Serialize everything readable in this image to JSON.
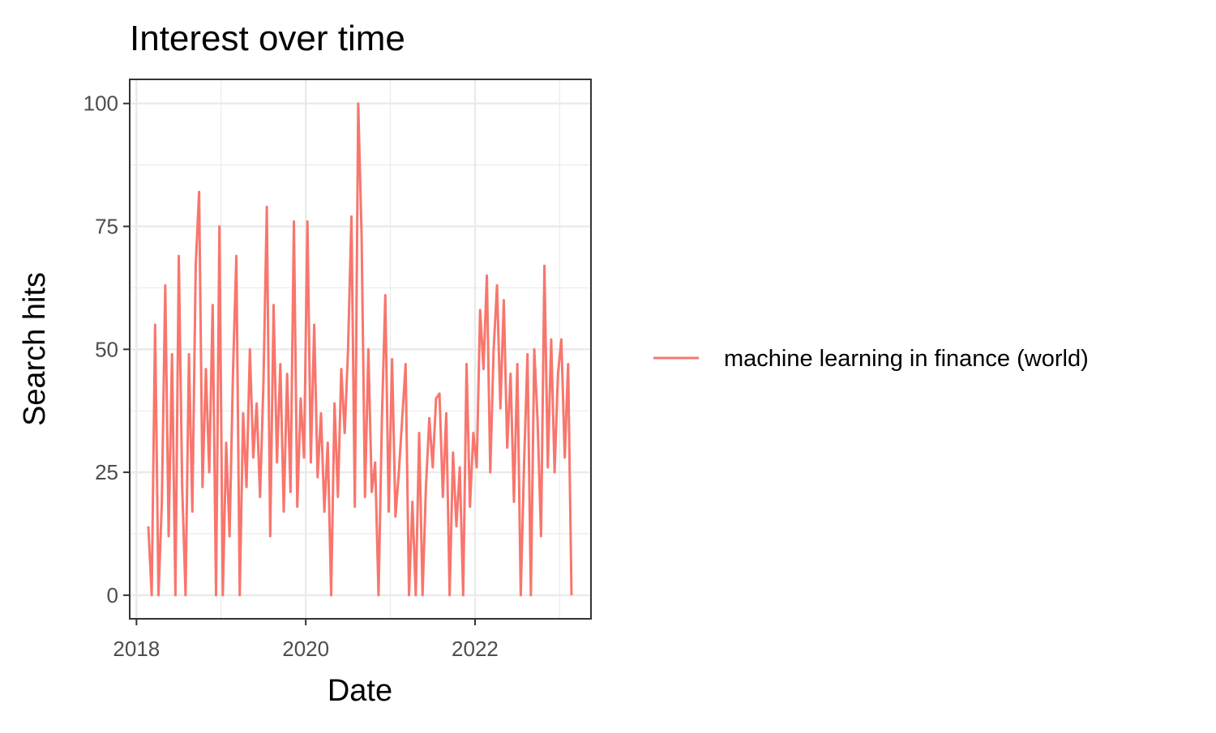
{
  "chart_data": {
    "type": "line",
    "title": "Interest over time",
    "x_label": "Date",
    "y_label": "Search hits",
    "x": [
      2018.14,
      2018.18,
      2018.22,
      2018.26,
      2018.3,
      2018.34,
      2018.38,
      2018.42,
      2018.46,
      2018.5,
      2018.54,
      2018.58,
      2018.62,
      2018.66,
      2018.7,
      2018.74,
      2018.78,
      2018.82,
      2018.86,
      2018.9,
      2018.94,
      2018.98,
      2019.02,
      2019.06,
      2019.1,
      2019.14,
      2019.18,
      2019.22,
      2019.26,
      2019.3,
      2019.34,
      2019.38,
      2019.42,
      2019.46,
      2019.5,
      2019.54,
      2019.58,
      2019.62,
      2019.66,
      2019.7,
      2019.74,
      2019.78,
      2019.82,
      2019.86,
      2019.9,
      2019.94,
      2019.98,
      2020.02,
      2020.06,
      2020.1,
      2020.14,
      2020.18,
      2020.22,
      2020.26,
      2020.3,
      2020.34,
      2020.38,
      2020.42,
      2020.46,
      2020.5,
      2020.54,
      2020.58,
      2020.62,
      2020.66,
      2020.7,
      2020.74,
      2020.78,
      2020.82,
      2020.86,
      2020.9,
      2020.94,
      2020.98,
      2021.02,
      2021.06,
      2021.1,
      2021.14,
      2021.18,
      2021.22,
      2021.26,
      2021.3,
      2021.34,
      2021.38,
      2021.42,
      2021.46,
      2021.5,
      2021.54,
      2021.58,
      2021.62,
      2021.66,
      2021.7,
      2021.74,
      2021.78,
      2021.82,
      2021.86,
      2021.9,
      2021.94,
      2021.98,
      2022.02,
      2022.06,
      2022.1,
      2022.14,
      2022.18,
      2022.22,
      2022.26,
      2022.3,
      2022.34,
      2022.38,
      2022.42,
      2022.46,
      2022.5,
      2022.54,
      2022.58,
      2022.62,
      2022.66,
      2022.7,
      2022.74,
      2022.78,
      2022.82,
      2022.86,
      2022.9,
      2022.94,
      2022.98,
      2023.02,
      2023.06,
      2023.1,
      2023.14
    ],
    "series": [
      {
        "name": "machine learning in finance (world)",
        "color": "#f8766d",
        "values": [
          14,
          0,
          55,
          0,
          19,
          63,
          12,
          49,
          0,
          69,
          22,
          0,
          49,
          17,
          67,
          82,
          22,
          46,
          25,
          59,
          0,
          75,
          0,
          31,
          12,
          45,
          69,
          0,
          37,
          22,
          50,
          28,
          39,
          20,
          43,
          79,
          12,
          59,
          27,
          47,
          17,
          45,
          21,
          76,
          18,
          40,
          28,
          76,
          27,
          55,
          24,
          37,
          17,
          31,
          0,
          39,
          20,
          46,
          33,
          50,
          77,
          18,
          100,
          73,
          20,
          50,
          21,
          27,
          0,
          36,
          61,
          17,
          48,
          16,
          25,
          36,
          47,
          0,
          19,
          0,
          33,
          0,
          22,
          36,
          26,
          40,
          41,
          20,
          37,
          0,
          29,
          14,
          26,
          0,
          47,
          18,
          33,
          26,
          58,
          46,
          65,
          25,
          50,
          63,
          38,
          60,
          30,
          45,
          19,
          47,
          0,
          27,
          49,
          0,
          50,
          35,
          12,
          67,
          26,
          52,
          25,
          45,
          52,
          28,
          47,
          0
        ]
      }
    ],
    "xlim": [
      2017.92,
      2023.37
    ],
    "xticks": [
      2018,
      2020,
      2022
    ],
    "minor_xticks": [
      2019,
      2021,
      2023
    ],
    "ylim": [
      -4.8,
      104.9
    ],
    "yticks": [
      0,
      25,
      50,
      75,
      100
    ],
    "minor_yticks": [
      12.5,
      37.5,
      62.5,
      87.5
    ],
    "grid": true,
    "legend": "right"
  }
}
